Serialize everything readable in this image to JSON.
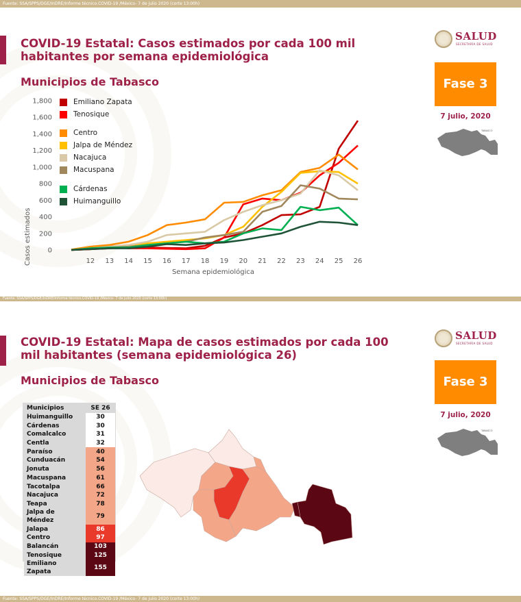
{
  "source_text": "Fuente: SSA/SPPS/DGE/InDRE/Informe técnico.COVID-19 /México- 7 de julio 2020 (corte 13:00h)",
  "source_text_mid": "Fuente: SSA/SPPS/DGE/InDRE/Informe técnico.COVID-19 /México- 7 de julio 2020 (corte 13:00h)",
  "source_text_bottom": "Fuente: SSA/SPPS/DGE/InDRE/Informe técnico.COVID-19 /México- 7 de julio 2020 (corte 13:00h)",
  "logo": {
    "word": "SALUD",
    "small": "SECRETARÍA DE SALUD"
  },
  "phase_label": "Fase 3",
  "date_label": "7 julio, 2020",
  "slide1": {
    "title": "COVID-19 Estatal: Casos estimados por cada 100 mil habitantes por semana epidemiológica",
    "subtitle": "Municipios de Tabasco"
  },
  "slide2": {
    "title": "COVID-19 Estatal: Mapa de casos estimados por cada 100 mil habitantes (semana epidemiológica 26)",
    "subtitle": "Municipios de Tabasco",
    "table_header": [
      "Municipios",
      "SE 26"
    ],
    "table_rows": [
      {
        "name": "Huimanguillo",
        "value": "30",
        "color": "#ffffff",
        "text": "#111111"
      },
      {
        "name": "Cárdenas",
        "value": "30",
        "color": "#ffffff",
        "text": "#111111"
      },
      {
        "name": "Comalcalco",
        "value": "31",
        "color": "#ffffff",
        "text": "#111111"
      },
      {
        "name": "Centla",
        "value": "32",
        "color": "#ffffff",
        "text": "#111111"
      },
      {
        "name": "Paraíso",
        "value": "40",
        "color": "#f4a688",
        "text": "#111111"
      },
      {
        "name": "Cunduacán",
        "value": "54",
        "color": "#f4a688",
        "text": "#111111"
      },
      {
        "name": "Jonuta",
        "value": "56",
        "color": "#f4a688",
        "text": "#111111"
      },
      {
        "name": "Macuspana",
        "value": "61",
        "color": "#f4a688",
        "text": "#111111"
      },
      {
        "name": "Tacotalpa",
        "value": "66",
        "color": "#f4a688",
        "text": "#111111"
      },
      {
        "name": "Nacajuca",
        "value": "72",
        "color": "#f4a688",
        "text": "#111111"
      },
      {
        "name": "Teapa",
        "value": "78",
        "color": "#f4a688",
        "text": "#111111"
      },
      {
        "name": "Jalpa de Méndez",
        "value": "79",
        "color": "#f4a688",
        "text": "#111111"
      },
      {
        "name": "Jalapa",
        "value": "86",
        "color": "#e8392b",
        "text": "#ffffff"
      },
      {
        "name": "Centro",
        "value": "97",
        "color": "#e8392b",
        "text": "#ffffff"
      },
      {
        "name": "Balancán",
        "value": "103",
        "color": "#5c0714",
        "text": "#ffffff"
      },
      {
        "name": "Tenosique",
        "value": "125",
        "color": "#5c0714",
        "text": "#ffffff"
      },
      {
        "name": "Emiliano Zapata",
        "value": "155",
        "color": "#5c0714",
        "text": "#ffffff"
      }
    ]
  },
  "chart_data": {
    "type": "line",
    "xlabel": "Semana epidemiológica",
    "ylabel": "Casos estimados",
    "x": [
      11,
      12,
      13,
      14,
      15,
      16,
      17,
      18,
      19,
      20,
      21,
      22,
      23,
      24,
      25,
      26
    ],
    "x_ticks": [
      "12",
      "13",
      "14",
      "15",
      "16",
      "17",
      "18",
      "19",
      "20",
      "21",
      "22",
      "23",
      "24",
      "25",
      "26"
    ],
    "y_ticks": [
      "0",
      "200",
      "400",
      "600",
      "800",
      "1,000",
      "1,200",
      "1,400",
      "1,600",
      "1,800"
    ],
    "ylim": [
      0,
      1800
    ],
    "xlim": [
      11,
      26
    ],
    "series": [
      {
        "name": "Emiliano Zapata",
        "color": "#c00000",
        "values": [
          0,
          10,
          20,
          40,
          30,
          25,
          20,
          50,
          150,
          200,
          300,
          420,
          430,
          520,
          1220,
          1560
        ]
      },
      {
        "name": "Tenosique",
        "color": "#ff0000",
        "values": [
          0,
          10,
          50,
          20,
          20,
          15,
          10,
          20,
          150,
          550,
          620,
          600,
          690,
          900,
          1050,
          1260
        ]
      },
      {
        "name": "Centro",
        "color": "#ff8c00",
        "values": [
          5,
          40,
          60,
          100,
          180,
          300,
          330,
          370,
          570,
          580,
          660,
          720,
          940,
          990,
          1150,
          970
        ]
      },
      {
        "name": "Jalpa de Méndez",
        "color": "#ffc000",
        "values": [
          0,
          20,
          30,
          50,
          80,
          100,
          120,
          140,
          180,
          280,
          520,
          700,
          930,
          950,
          940,
          800
        ]
      },
      {
        "name": "Nacajuca",
        "color": "#d9c9a6",
        "values": [
          0,
          20,
          40,
          60,
          100,
          180,
          200,
          220,
          360,
          460,
          540,
          600,
          680,
          960,
          900,
          720
        ]
      },
      {
        "name": "Macuspana",
        "color": "#a0875c",
        "values": [
          0,
          20,
          30,
          40,
          60,
          80,
          100,
          150,
          180,
          220,
          460,
          530,
          780,
          740,
          620,
          610
        ]
      },
      {
        "name": "Cárdenas",
        "color": "#00b050",
        "values": [
          0,
          20,
          30,
          30,
          60,
          80,
          100,
          80,
          100,
          200,
          260,
          240,
          520,
          480,
          510,
          300
        ]
      },
      {
        "name": "Huimanguillo",
        "color": "#1f5337",
        "values": [
          0,
          10,
          20,
          20,
          40,
          70,
          60,
          80,
          90,
          120,
          160,
          200,
          280,
          340,
          330,
          300
        ]
      }
    ]
  }
}
